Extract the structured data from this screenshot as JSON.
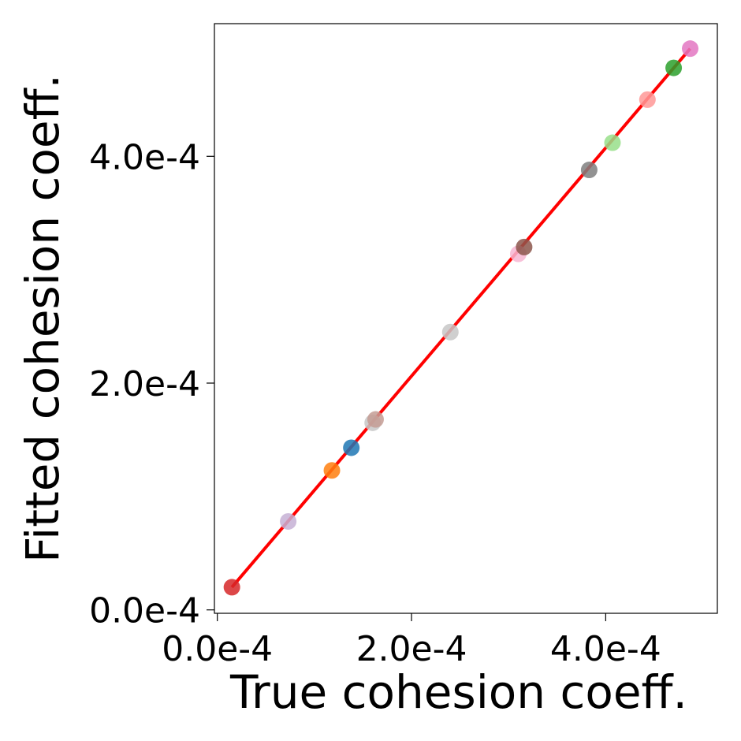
{
  "chart_data": {
    "type": "scatter",
    "title": "",
    "xlabel": "True cohesion coeff.",
    "ylabel": "Fitted cohesion coeff.",
    "xlim": [
      -3e-06,
      0.000515
    ],
    "ylim": [
      -3e-06,
      0.000517
    ],
    "x_ticks": [
      {
        "value": 0.0,
        "label": "0.0e-4"
      },
      {
        "value": 0.0002,
        "label": "2.0e-4"
      },
      {
        "value": 0.0004,
        "label": "4.0e-4"
      }
    ],
    "y_ticks": [
      {
        "value": 0.0,
        "label": "0.0e-4"
      },
      {
        "value": 0.0002,
        "label": "2.0e-4"
      },
      {
        "value": 0.0004,
        "label": "4.0e-4"
      }
    ],
    "grid": false,
    "legend": "none",
    "points": [
      {
        "x": 1.5e-05,
        "y": 2e-05,
        "color": "#d62728"
      },
      {
        "x": 7.3e-05,
        "y": 7.8e-05,
        "color": "#c5b0d5"
      },
      {
        "x": 0.000118,
        "y": 0.000123,
        "color": "#ff7f0e"
      },
      {
        "x": 0.000138,
        "y": 0.000143,
        "color": "#1f77b4"
      },
      {
        "x": 0.00016,
        "y": 0.000165,
        "color": "#c7c7c7"
      },
      {
        "x": 0.000163,
        "y": 0.000168,
        "color": "#c49c94"
      },
      {
        "x": 0.00024,
        "y": 0.000245,
        "color": "#c7c7c7"
      },
      {
        "x": 0.00031,
        "y": 0.000314,
        "color": "#f7b6d2"
      },
      {
        "x": 0.000316,
        "y": 0.00032,
        "color": "#8c564b"
      },
      {
        "x": 0.000383,
        "y": 0.000388,
        "color": "#7f7f7f"
      },
      {
        "x": 0.000407,
        "y": 0.000412,
        "color": "#98df8a"
      },
      {
        "x": 0.000443,
        "y": 0.00045,
        "color": "#ff9896"
      },
      {
        "x": 0.00047,
        "y": 0.000478,
        "color": "#2ca02c"
      },
      {
        "x": 0.000487,
        "y": 0.000495,
        "color": "#e377c2"
      }
    ],
    "fit_line": {
      "x": [
        1.5e-05,
        0.000487
      ],
      "y": [
        2e-05,
        0.000495
      ],
      "color": "#ff0000"
    },
    "point_alpha": 0.85
  }
}
